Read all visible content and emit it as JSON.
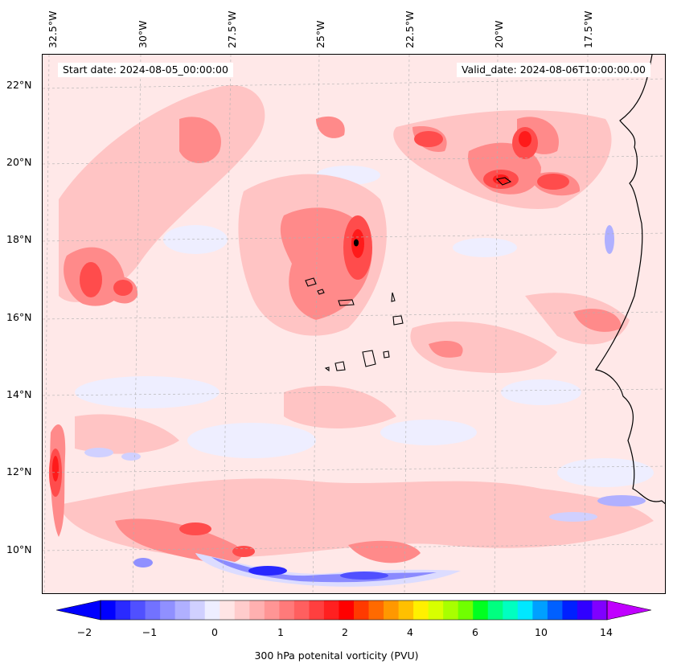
{
  "map": {
    "title_start": "Start date: 2024-08-05_00:00:00",
    "title_valid": "Valid_date: 2024-08-06T10:00:00.00",
    "lon_labels": [
      "32.5°W",
      "30°W",
      "27.5°W",
      "25°W",
      "22.5°W",
      "20°W",
      "17.5°W"
    ],
    "lat_labels": [
      "22°N",
      "20°N",
      "18°N",
      "16°N",
      "14°N",
      "12°N",
      "10°N"
    ],
    "colors": {
      "background": "#ffe8e8",
      "light_pink": "#ffc4c4",
      "mid_red": "#ff8a8a",
      "strong_red": "#ff4c4c",
      "deep_red": "#ff1a1a",
      "light_blue": "#dcdcff",
      "mid_blue": "#8a8aff",
      "deep_blue": "#2828ff",
      "coastline": "#000000"
    }
  },
  "colorbar": {
    "label": "300 hPa potenital vorticity (PVU)",
    "ticks": [
      "−2",
      "−1",
      "0",
      "1",
      "2",
      "4",
      "6",
      "10",
      "14"
    ],
    "colors": [
      "#0000ff",
      "#2a2aff",
      "#5050ff",
      "#7272ff",
      "#9090ff",
      "#b0b0ff",
      "#d0d0ff",
      "#eeeeff",
      "#ffe5e5",
      "#ffcccc",
      "#ffb0b0",
      "#ff9595",
      "#ff7a7a",
      "#ff5f5f",
      "#ff3f3f",
      "#ff2020",
      "#ff0000",
      "#ff3a00",
      "#ff6a00",
      "#ff9800",
      "#ffc000",
      "#fff000",
      "#d8ff00",
      "#a8ff00",
      "#70ff00",
      "#00ff20",
      "#00ff80",
      "#00ffc0",
      "#00e8ff",
      "#00a0ff",
      "#0060ff",
      "#0020ff",
      "#3000ff",
      "#8000ff"
    ],
    "extend_low": "#0000ff",
    "extend_high": "#c000ff"
  }
}
